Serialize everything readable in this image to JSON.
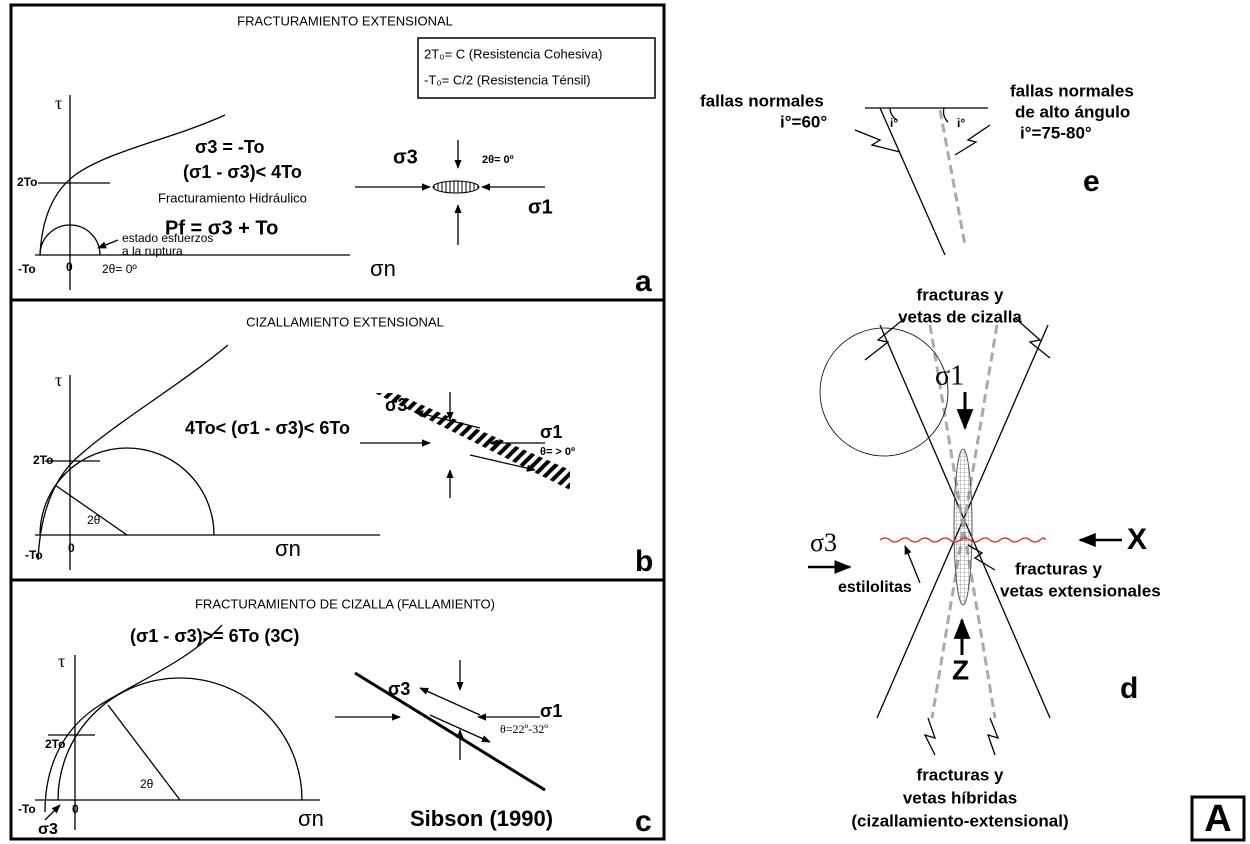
{
  "panel_a": {
    "title": "FRACTURAMIENTO EXTENSIONAL",
    "legend": [
      "2T₀= C  (Resistencia Cohesiva)",
      "-T₀= C/2  (Resistencia Ténsil)"
    ],
    "eq1": "σ3 = -To",
    "eq2": "(σ1 - σ3)< 4To",
    "hydro": "Fracturamiento Hidráulico",
    "eq3": "Pf = σ3 + To",
    "tau": "τ",
    "two_to": "2To",
    "note": [
      "estado esfuerzos",
      "a la ruptura"
    ],
    "neg_to": "-To",
    "zero": "0",
    "angle": "2θ= 0º",
    "sn": "σn",
    "s3": "σ3",
    "angle2": "2θ= 0º",
    "s1": "σ1",
    "letter": "a"
  },
  "panel_b": {
    "title": "CIZALLAMIENTO EXTENSIONAL",
    "tau": "τ",
    "eq": "4To< (σ1 - σ3)< 6To",
    "two_to": "2To",
    "angle": "2θ",
    "neg_to": "-To",
    "zero": "0",
    "sn": "σn",
    "s3": "σ3",
    "s1": "σ1",
    "theta": "θ= > 0º",
    "letter": "b"
  },
  "panel_c": {
    "title": "FRACTURAMIENTO DE CIZALLA (FALLAMIENTO)",
    "eq": "(σ1 - σ3)>= 6To (3C)",
    "tau": "τ",
    "two_to": "2To",
    "angle": "2θ",
    "neg_to": "-To",
    "zero": "0",
    "s3_axis": "σ3",
    "sn": "σn",
    "s3": "σ3",
    "s1": "σ1",
    "theta": "θ=22º-32º",
    "source": "Sibson (1990)",
    "letter": "c"
  },
  "panel_e": {
    "left": [
      "fallas normales",
      "i°=60°"
    ],
    "right": [
      "fallas normales",
      "de alto ángulo",
      "i°=75-80°"
    ],
    "angle_left": "i°",
    "angle_right": "i°",
    "letter": "e"
  },
  "panel_d": {
    "shear": [
      "fracturas y",
      "vetas de cizalla"
    ],
    "s1": "σ1",
    "s3": "σ3",
    "x": "X",
    "stylolites": "estilolitas",
    "extensional": [
      "fracturas y",
      "vetas extensionales"
    ],
    "z": "Z",
    "letter": "d",
    "hybrid": [
      "fracturas y",
      "vetas híbridas",
      "(cizallamiento-extensional)"
    ]
  },
  "figure_label": "A"
}
